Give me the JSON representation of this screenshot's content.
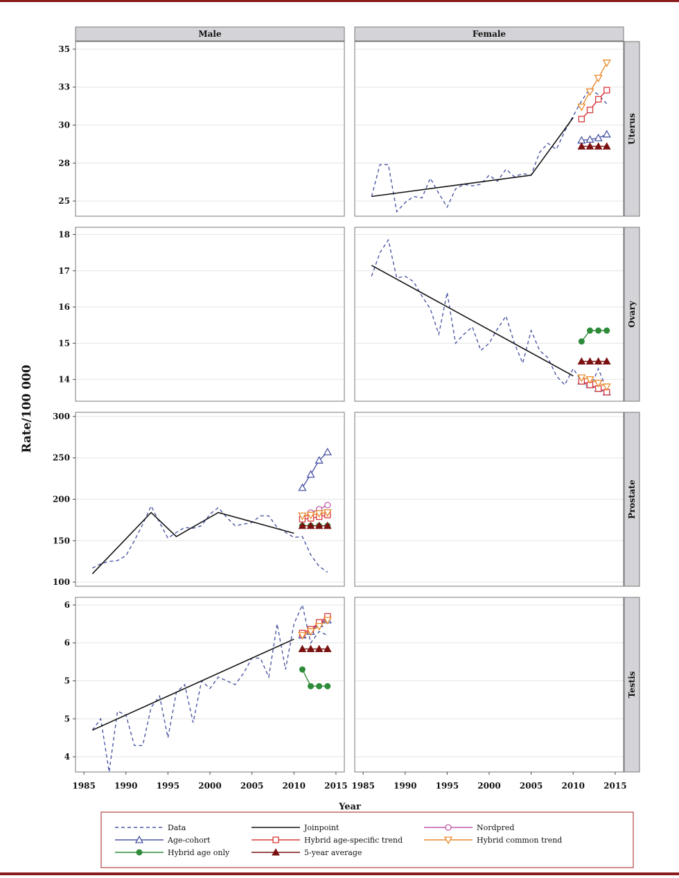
{
  "chart_data": {
    "type": "line",
    "ylabel": "Rate/100 000",
    "xlabel": "Year",
    "columns": [
      "Male",
      "Female"
    ],
    "rows": [
      "Uterus",
      "Ovary",
      "Prostate",
      "Testis"
    ],
    "x_ticks": [
      1985,
      1990,
      1995,
      2000,
      2005,
      2010,
      2015
    ],
    "xlim": [
      1984,
      2016
    ],
    "colors": {
      "data": "#4a55a2",
      "joinpoint": "#111111",
      "nordpred": "#c05aa8",
      "age_cohort": "#4a55a2",
      "hybrid_age_specific": "#d9383a",
      "hybrid_common": "#e98a2a",
      "hybrid_age_only": "#2e8b3a",
      "five_year_avg": "#7a1010"
    },
    "legend": [
      {
        "key": "data",
        "label": "Data",
        "style": "dashed",
        "marker": "none"
      },
      {
        "key": "joinpoint",
        "label": "Joinpoint",
        "style": "solid",
        "marker": "none"
      },
      {
        "key": "nordpred",
        "label": "Nordpred",
        "style": "solid",
        "marker": "circle-open"
      },
      {
        "key": "age_cohort",
        "label": "Age-cohort",
        "style": "solid",
        "marker": "triangle-open"
      },
      {
        "key": "hybrid_age_specific",
        "label": "Hybrid age-specific trend",
        "style": "solid",
        "marker": "square-open"
      },
      {
        "key": "hybrid_common",
        "label": "Hybrid common trend",
        "style": "solid",
        "marker": "triangle-down-open"
      },
      {
        "key": "hybrid_age_only",
        "label": "Hybrid age only",
        "style": "solid",
        "marker": "circle-filled"
      },
      {
        "key": "five_year_avg",
        "label": "5-year average",
        "style": "solid",
        "marker": "triangle-filled"
      }
    ],
    "panels": [
      {
        "row": "Uterus",
        "column": "Female",
        "yticks": [
          25,
          27.5,
          30,
          32.5,
          35
        ],
        "ytick_labels": [
          "25",
          "28",
          "30",
          "33",
          "35"
        ],
        "ylim": [
          24,
          35.5
        ],
        "series": [
          {
            "key": "data",
            "x": [
              1986,
              1987,
              1988,
              1989,
              1990,
              1991,
              1992,
              1993,
              1994,
              1995,
              1996,
              1997,
              1998,
              1999,
              2000,
              2001,
              2002,
              2003,
              2004,
              2005,
              2006,
              2007,
              2008,
              2009,
              2010,
              2011,
              2012,
              2013,
              2014
            ],
            "y": [
              25.3,
              27.4,
              27.4,
              24.3,
              24.9,
              25.3,
              25.2,
              26.5,
              25.5,
              24.6,
              25.8,
              26.1,
              26.0,
              26.1,
              26.7,
              26.3,
              27.1,
              26.6,
              26.8,
              26.7,
              28.2,
              28.8,
              28.4,
              29.6,
              30.6,
              31.6,
              32.4,
              32.0,
              31.4
            ]
          },
          {
            "key": "joinpoint",
            "x": [
              1986,
              2005,
              2010
            ],
            "y": [
              25.3,
              26.7,
              30.5
            ]
          },
          {
            "key": "age_cohort",
            "x": [
              2011,
              2012,
              2013,
              2014
            ],
            "y": [
              29.0,
              29.05,
              29.15,
              29.4
            ]
          },
          {
            "key": "nordpred",
            "x": [
              2011,
              2012,
              2013,
              2014
            ],
            "y": [
              30.4,
              31.0,
              31.7,
              32.3
            ]
          },
          {
            "key": "hybrid_age_specific",
            "x": [
              2011,
              2012,
              2013,
              2014
            ],
            "y": [
              30.4,
              31.0,
              31.7,
              32.3
            ]
          },
          {
            "key": "hybrid_common",
            "x": [
              2011,
              2012,
              2013,
              2014
            ],
            "y": [
              31.2,
              32.2,
              33.1,
              34.1
            ]
          },
          {
            "key": "five_year_avg",
            "x": [
              2011,
              2012,
              2013,
              2014
            ],
            "y": [
              28.6,
              28.6,
              28.6,
              28.6
            ]
          }
        ]
      },
      {
        "row": "Ovary",
        "column": "Female",
        "yticks": [
          14,
          15,
          16,
          17,
          18
        ],
        "ytick_labels": [
          "14",
          "15",
          "16",
          "17",
          "18"
        ],
        "ylim": [
          13.4,
          18.2
        ],
        "series": [
          {
            "key": "data",
            "x": [
              1986,
              1987,
              1988,
              1989,
              1990,
              1991,
              1992,
              1993,
              1994,
              1995,
              1996,
              1997,
              1998,
              1999,
              2000,
              2001,
              2002,
              2003,
              2004,
              2005,
              2006,
              2007,
              2008,
              2009,
              2010,
              2011,
              2012,
              2013,
              2014
            ],
            "y": [
              16.85,
              17.5,
              17.85,
              16.8,
              16.85,
              16.7,
              16.3,
              15.95,
              15.25,
              16.4,
              15.0,
              15.25,
              15.45,
              14.8,
              15.0,
              15.4,
              15.75,
              15.0,
              14.45,
              15.35,
              14.8,
              14.6,
              14.1,
              13.85,
              14.3,
              13.95,
              13.75,
              14.3,
              13.7
            ]
          },
          {
            "key": "joinpoint",
            "x": [
              1986,
              2010
            ],
            "y": [
              17.15,
              14.1
            ]
          },
          {
            "key": "age_cohort",
            "x": [
              2011,
              2012,
              2013,
              2014
            ],
            "y": [
              13.95,
              13.85,
              13.75,
              13.65
            ]
          },
          {
            "key": "nordpred",
            "x": [
              2011,
              2012,
              2013,
              2014
            ],
            "y": [
              13.95,
              13.85,
              13.75,
              13.65
            ]
          },
          {
            "key": "hybrid_age_specific",
            "x": [
              2011,
              2012,
              2013,
              2014
            ],
            "y": [
              13.95,
              13.85,
              13.75,
              13.65
            ]
          },
          {
            "key": "hybrid_common",
            "x": [
              2011,
              2012,
              2013,
              2014
            ],
            "y": [
              14.05,
              14.0,
              13.9,
              13.8
            ]
          },
          {
            "key": "hybrid_age_only",
            "x": [
              2011,
              2012,
              2013,
              2014
            ],
            "y": [
              15.05,
              15.35,
              15.35,
              15.35
            ]
          },
          {
            "key": "five_year_avg",
            "x": [
              2011,
              2012,
              2013,
              2014
            ],
            "y": [
              14.5,
              14.5,
              14.5,
              14.5
            ]
          }
        ]
      },
      {
        "row": "Prostate",
        "column": "Male",
        "yticks": [
          100,
          150,
          200,
          250,
          300
        ],
        "ytick_labels": [
          "100",
          "150",
          "200",
          "250",
          "300"
        ],
        "ylim": [
          95,
          305
        ],
        "series": [
          {
            "key": "data",
            "x": [
              1986,
              1987,
              1988,
              1989,
              1990,
              1991,
              1992,
              1993,
              1994,
              1995,
              1996,
              1997,
              1998,
              1999,
              2000,
              2001,
              2002,
              2003,
              2004,
              2005,
              2006,
              2007,
              2008,
              2009,
              2010,
              2011,
              2012,
              2013,
              2014
            ],
            "y": [
              117,
              122,
              125,
              126,
              132,
              150,
              170,
              192,
              172,
              153,
              160,
              166,
              165,
              168,
              182,
              190,
              178,
              168,
              170,
              172,
              180,
              180,
              166,
              160,
              154,
              155,
              133,
              119,
              112
            ]
          },
          {
            "key": "joinpoint",
            "x": [
              1986,
              1993,
              1996,
              2001,
              2010
            ],
            "y": [
              110,
              184,
              155,
              184,
              159
            ]
          },
          {
            "key": "age_cohort",
            "x": [
              2011,
              2012,
              2013,
              2014
            ],
            "y": [
              214,
              230,
              247,
              257
            ]
          },
          {
            "key": "nordpred",
            "x": [
              2011,
              2012,
              2013,
              2014
            ],
            "y": [
              178,
              184,
              188,
              193
            ]
          },
          {
            "key": "hybrid_age_specific",
            "x": [
              2011,
              2012,
              2013,
              2014
            ],
            "y": [
              176,
              177,
              179,
              181
            ]
          },
          {
            "key": "hybrid_common",
            "x": [
              2011,
              2012,
              2013,
              2014
            ],
            "y": [
              180,
              181,
              183,
              184
            ]
          },
          {
            "key": "hybrid_age_only",
            "x": [
              2011,
              2012,
              2013,
              2014
            ],
            "y": [
              168,
              168,
              168,
              168
            ]
          },
          {
            "key": "five_year_avg",
            "x": [
              2011,
              2012,
              2013,
              2014
            ],
            "y": [
              168,
              168,
              168,
              168
            ]
          }
        ]
      },
      {
        "row": "Testis",
        "column": "Male",
        "yticks": [
          4,
          4.5,
          5,
          5.5,
          6
        ],
        "ytick_labels": [
          "4",
          "5",
          "5",
          "6",
          "6"
        ],
        "ylim": [
          3.8,
          6.1
        ],
        "series": [
          {
            "key": "data",
            "x": [
              1986,
              1987,
              1988,
              1989,
              1990,
              1991,
              1992,
              1993,
              1994,
              1995,
              1996,
              1997,
              1998,
              1999,
              2000,
              2001,
              2002,
              2003,
              2004,
              2005,
              2006,
              2007,
              2008,
              2009,
              2010,
              2011,
              2012,
              2013,
              2014
            ],
            "y": [
              4.35,
              4.5,
              3.8,
              4.6,
              4.55,
              4.15,
              4.15,
              4.65,
              4.8,
              4.25,
              4.85,
              4.95,
              4.45,
              5.0,
              4.9,
              5.05,
              5.0,
              4.95,
              5.1,
              5.3,
              5.3,
              5.05,
              5.75,
              5.15,
              5.75,
              6.0,
              5.5,
              5.65,
              5.6
            ]
          },
          {
            "key": "joinpoint",
            "x": [
              1986,
              2010
            ],
            "y": [
              4.35,
              5.55
            ]
          },
          {
            "key": "age_cohort",
            "x": [
              2011,
              2012,
              2013,
              2014
            ],
            "y": [
              5.6,
              5.65,
              5.75,
              5.8
            ]
          },
          {
            "key": "nordpred",
            "x": [
              2011,
              2012,
              2013,
              2014
            ],
            "y": [
              5.6,
              5.67,
              5.75,
              5.83
            ]
          },
          {
            "key": "hybrid_age_specific",
            "x": [
              2011,
              2012,
              2013,
              2014
            ],
            "y": [
              5.63,
              5.68,
              5.77,
              5.85
            ]
          },
          {
            "key": "hybrid_common",
            "x": [
              2011,
              2012,
              2013,
              2014
            ],
            "y": [
              5.6,
              5.65,
              5.72,
              5.8
            ]
          },
          {
            "key": "hybrid_age_only",
            "x": [
              2011,
              2012,
              2013,
              2014
            ],
            "y": [
              5.15,
              4.93,
              4.93,
              4.93
            ]
          },
          {
            "key": "five_year_avg",
            "x": [
              2011,
              2012,
              2013,
              2014
            ],
            "y": [
              5.42,
              5.42,
              5.42,
              5.42
            ]
          }
        ]
      }
    ]
  }
}
